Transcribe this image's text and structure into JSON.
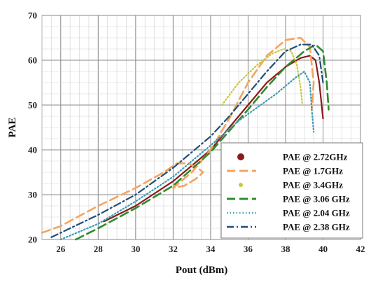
{
  "chart_data": {
    "type": "line",
    "title": "",
    "xlabel": "Pout (dBm)",
    "ylabel": "PAE",
    "xlim": [
      25,
      42
    ],
    "ylim": [
      20,
      70
    ],
    "xticks": [
      26,
      28,
      30,
      32,
      34,
      36,
      38,
      40,
      42
    ],
    "yticks": [
      20,
      30,
      40,
      50,
      60,
      70
    ],
    "grid": true,
    "legend_position": "bottom-right",
    "series": [
      {
        "name": "PAE @ 2.72GHz",
        "color": "#8b1a1a",
        "style": "solid",
        "x": [
          28.3,
          30,
          32,
          34,
          35,
          36,
          37,
          38,
          38.8,
          39.3,
          39.6,
          39.8,
          40.0
        ],
        "y": [
          24,
          27.5,
          33,
          40,
          45,
          50,
          55,
          58.5,
          60.5,
          61,
          60,
          55,
          47
        ]
      },
      {
        "name": "PAE @ 1.7GHz",
        "color": "#f7a35c",
        "style": "dash",
        "x": [
          25,
          26,
          28,
          30,
          31.5,
          32.2,
          32.8,
          33.3,
          33.6,
          33.2,
          32.6,
          32.0,
          33,
          34,
          35,
          36,
          37,
          38,
          38.8,
          39.3,
          39.5,
          39.4
        ],
        "y": [
          21.5,
          23,
          27.5,
          31.5,
          35,
          37,
          37,
          36,
          35,
          33.5,
          32,
          31.5,
          35,
          40,
          47,
          55,
          61,
          64.5,
          65,
          63,
          55,
          49
        ]
      },
      {
        "name": "PAE @ 3.4GHz",
        "color": "#c8c83a",
        "style": "dot",
        "x": [
          34.6,
          35.5,
          36.5,
          37.3,
          37.9,
          38.3,
          38.6,
          38.8,
          38.9
        ],
        "y": [
          50,
          55,
          59,
          61.5,
          62.5,
          62,
          59,
          54,
          50
        ]
      },
      {
        "name": "PAE @ 3.06 GHz",
        "color": "#2e8b2e",
        "style": "dash",
        "x": [
          26.8,
          28,
          30,
          32,
          34,
          36,
          37,
          38,
          39,
          39.6,
          40.0,
          40.2,
          40.3
        ],
        "y": [
          20,
          22.5,
          27,
          32,
          39.5,
          49,
          54,
          58.5,
          62,
          63.5,
          62,
          55,
          49
        ]
      },
      {
        "name": "PAE @ 2.04 GHz",
        "color": "#3b9db8",
        "style": "dot",
        "x": [
          26,
          28,
          30,
          32,
          34,
          35.5,
          36.5,
          37.5,
          38.5,
          39.0,
          39.3,
          39.4,
          39.5
        ],
        "y": [
          20,
          23.5,
          28.5,
          34,
          41,
          46.5,
          49.5,
          52.5,
          56,
          57.5,
          55,
          49,
          44
        ]
      },
      {
        "name": "PAE @ 2.38 GHz",
        "color": "#1f4e79",
        "style": "dashdot",
        "x": [
          25.5,
          28,
          30,
          32,
          34,
          35,
          36,
          37,
          38,
          38.8,
          39.4,
          39.8,
          40.0
        ],
        "y": [
          20.5,
          25.5,
          30,
          36,
          43,
          47.5,
          52.5,
          57.5,
          62,
          63.5,
          63.5,
          61,
          55
        ]
      }
    ]
  }
}
